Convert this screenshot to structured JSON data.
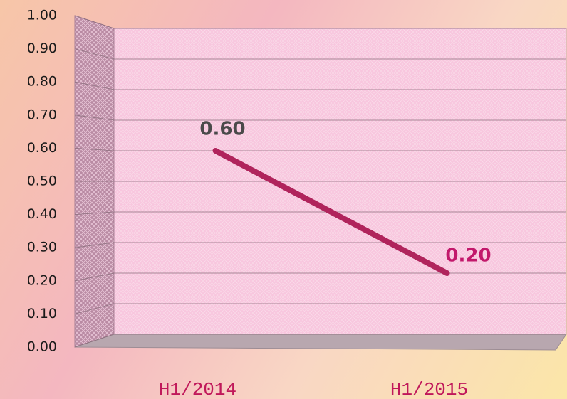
{
  "chart_data": {
    "type": "line",
    "categories": [
      "H1/2014",
      "H1/2015"
    ],
    "series": [
      {
        "color": "#b0245c",
        "values": [
          0.6,
          0.2
        ],
        "value_labels": [
          "0.60",
          "0.20"
        ],
        "value_label_colors": [
          "#4a4a4a",
          "#c2186b"
        ]
      }
    ],
    "ylim": [
      0,
      1
    ],
    "yticks": [
      {
        "value": 0,
        "label": "0.00"
      },
      {
        "value": 0.1,
        "label": "0.10"
      },
      {
        "value": 0.2,
        "label": "0.20"
      },
      {
        "value": 0.3,
        "label": "0.30"
      },
      {
        "value": 0.4,
        "label": "0.40"
      },
      {
        "value": 0.5,
        "label": "0.50"
      },
      {
        "value": 0.6,
        "label": "0.60"
      },
      {
        "value": 0.7,
        "label": "0.70"
      },
      {
        "value": 0.8,
        "label": "0.80"
      },
      {
        "value": 0.9,
        "label": "0.90"
      },
      {
        "value": 1,
        "label": "1.00"
      }
    ],
    "grid": true
  }
}
